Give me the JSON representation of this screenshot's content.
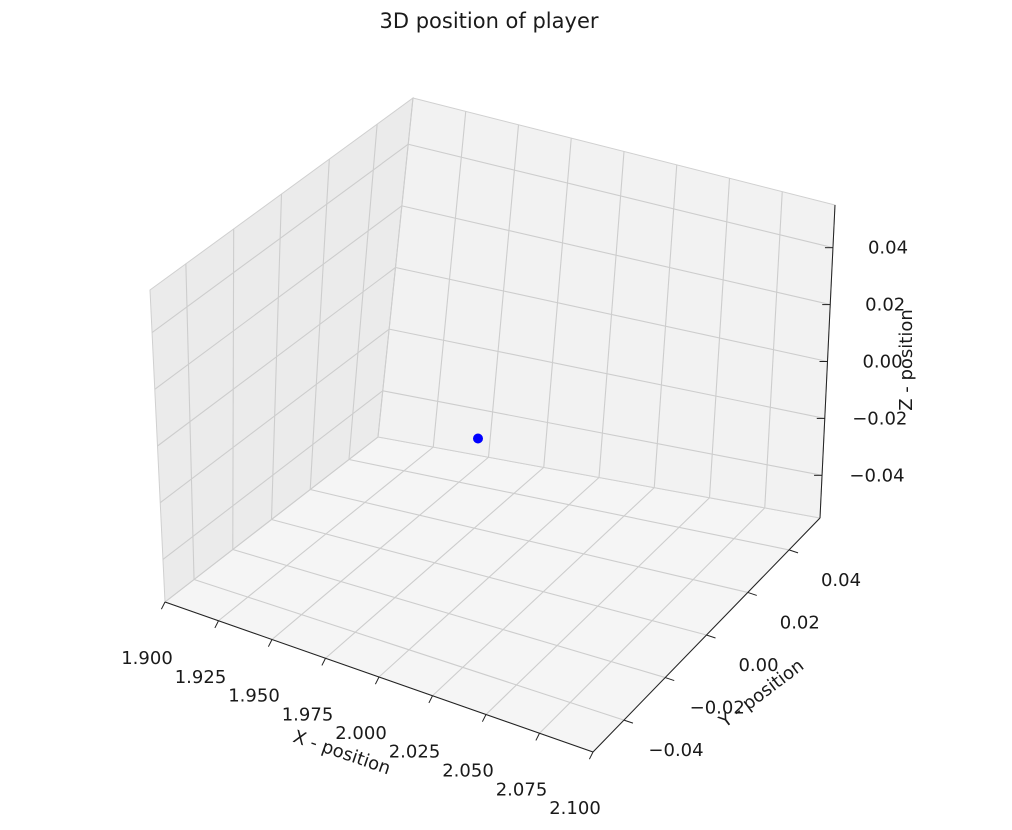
{
  "chart_data": {
    "type": "scatter",
    "title": "3D position of player",
    "xlabel": "X - position",
    "ylabel": "Y - position",
    "zlabel": "Z - position",
    "xlim": [
      1.9,
      2.1
    ],
    "ylim": [
      -0.055,
      0.055
    ],
    "zlim": [
      -0.055,
      0.055
    ],
    "x_ticks": [
      "1.900",
      "1.925",
      "1.950",
      "1.975",
      "2.000",
      "2.025",
      "2.050",
      "2.075",
      "2.100"
    ],
    "x_tick_values": [
      1.9,
      1.925,
      1.95,
      1.975,
      2.0,
      2.025,
      2.05,
      2.075,
      2.1
    ],
    "y_ticks": [
      "−0.04",
      "−0.02",
      "0.00",
      "0.02",
      "0.04"
    ],
    "y_tick_values": [
      -0.04,
      -0.02,
      0.0,
      0.02,
      0.04
    ],
    "z_ticks": [
      "−0.04",
      "−0.02",
      "0.00",
      "0.02",
      "0.04"
    ],
    "z_tick_values": [
      -0.04,
      -0.02,
      0.0,
      0.02,
      0.04
    ],
    "grid": true,
    "points": [
      {
        "x": 2.0,
        "y": 0.0,
        "z": 0.0
      }
    ],
    "point_color": "#0000ff",
    "pane_colors": {
      "back": "#f2f2f2",
      "left": "#ebebeb",
      "floor": "#f5f5f5"
    },
    "grid_color": "#cdcdcd"
  }
}
